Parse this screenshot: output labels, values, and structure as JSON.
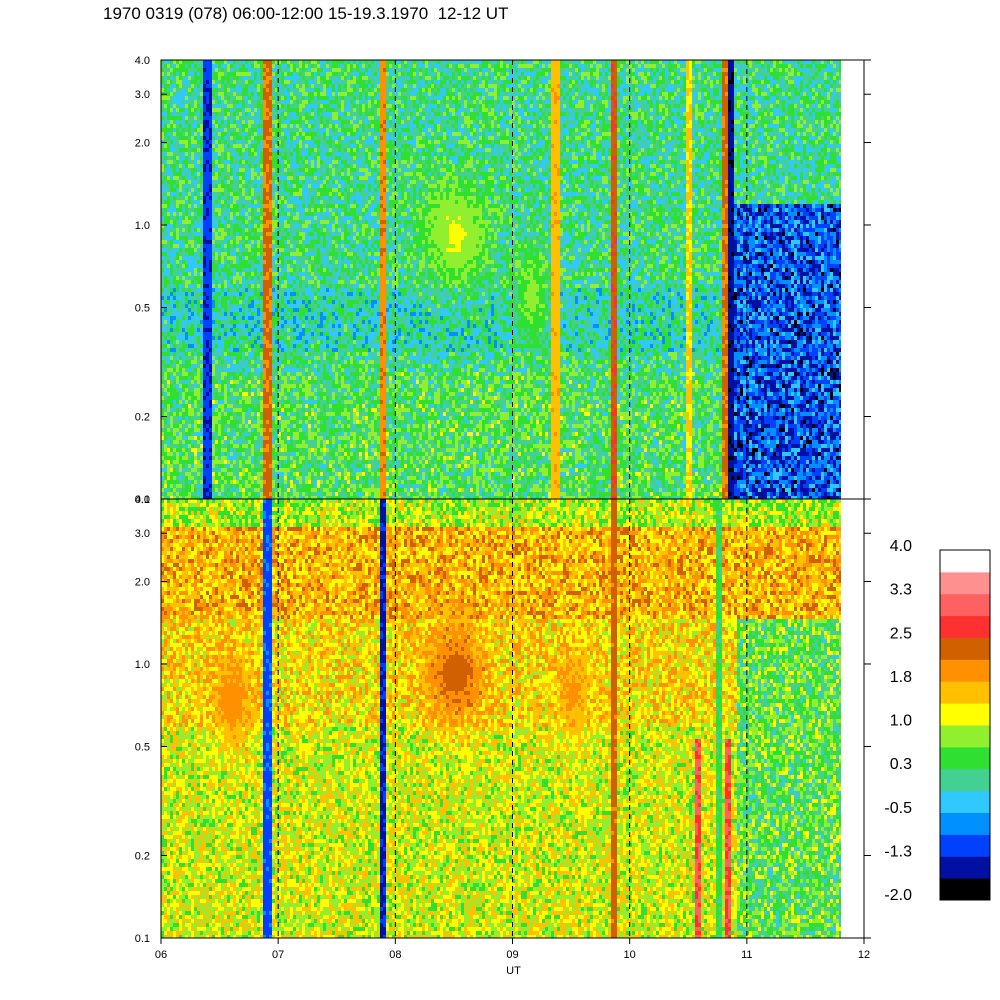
{
  "title": "1970 0319 (078) 06:00-12:00 15-19.3.1970  12-12 UT",
  "chart_data": {
    "type": "heatmap",
    "title": "1970 0319 (078) 06:00-12:00 15-19.3.1970  12-12 UT",
    "xlabel": "UT",
    "x_range": [
      6,
      12
    ],
    "x_ticks": [
      "06",
      "07",
      "08",
      "09",
      "10",
      "11",
      "12"
    ],
    "data_end_ut": 11.8,
    "dashed_lines_ut": [
      7,
      8,
      9,
      10,
      11
    ],
    "y_scale": "log",
    "y_range": [
      0.1,
      4.0
    ],
    "y_ticks": [
      "0.1",
      "0.2",
      "0.5",
      "1.0",
      "2.0",
      "3.0",
      "4.0"
    ],
    "panels": [
      {
        "name": "upper",
        "base_level": 0.2,
        "features": [
          {
            "kind": "blob",
            "ut": 8.5,
            "freq": 0.95,
            "level": 1.05,
            "width_ut": 0.55
          },
          {
            "kind": "blob",
            "ut": 9.15,
            "freq": 0.55,
            "level": 0.7,
            "width_ut": 0.3
          },
          {
            "kind": "low_band",
            "ut_range": [
              10.8,
              11.8
            ],
            "freq_max": 1.2,
            "level": -1.0
          },
          {
            "kind": "stripe",
            "ut": 6.38,
            "level": -1.2
          },
          {
            "kind": "stripe",
            "ut": 6.9,
            "level": 2.2
          },
          {
            "kind": "stripe",
            "ut": 7.88,
            "level": 2.0
          },
          {
            "kind": "stripe",
            "ut": 9.35,
            "level": 1.6
          },
          {
            "kind": "stripe",
            "ut": 9.85,
            "level": 2.4
          },
          {
            "kind": "stripe",
            "ut": 10.5,
            "level": 1.4
          },
          {
            "kind": "stripe",
            "ut": 10.8,
            "level": 2.2
          },
          {
            "kind": "stripe",
            "ut": 10.85,
            "level": -1.5
          }
        ]
      },
      {
        "name": "lower",
        "base_level": 1.4,
        "features": [
          {
            "kind": "blob",
            "ut": 8.5,
            "freq": 0.95,
            "level": 2.3,
            "width_ut": 0.5
          },
          {
            "kind": "blob",
            "ut": 6.6,
            "freq": 0.75,
            "level": 1.9,
            "width_ut": 0.35
          },
          {
            "kind": "blob",
            "ut": 9.5,
            "freq": 0.8,
            "level": 1.8,
            "width_ut": 0.3
          },
          {
            "kind": "low_band",
            "ut_range": [
              10.9,
              11.8
            ],
            "freq_max": 1.5,
            "level": 0.5
          },
          {
            "kind": "stripe",
            "ut": 6.9,
            "level": -1.0
          },
          {
            "kind": "stripe",
            "ut": 7.88,
            "level": -1.3
          },
          {
            "kind": "stripe",
            "ut": 9.85,
            "level": 2.3
          },
          {
            "kind": "stripe",
            "ut": 10.57,
            "level": 2.9,
            "freq_max": 0.55
          },
          {
            "kind": "stripe",
            "ut": 10.83,
            "level": 2.9,
            "freq_max": 0.55
          },
          {
            "kind": "stripe",
            "ut": 10.75,
            "level": 0.3
          }
        ]
      }
    ],
    "colorbar": {
      "labels": [
        "4.0",
        "3.3",
        "2.5",
        "1.8",
        "1.0",
        "0.3",
        "-0.5",
        "-1.3",
        "-2.0"
      ],
      "range": [
        -2.0,
        4.0
      ],
      "colors": [
        "#000000",
        "#0010a0",
        "#0040ff",
        "#0090ff",
        "#30c8ff",
        "#44d090",
        "#30e030",
        "#90f030",
        "#ffff00",
        "#ffc000",
        "#ff9000",
        "#d06000",
        "#ff3030",
        "#ff6060",
        "#ff9090",
        "#ffffff"
      ]
    }
  }
}
